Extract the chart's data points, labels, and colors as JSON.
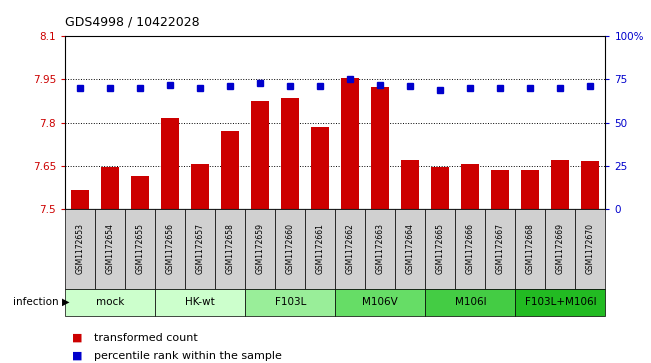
{
  "title": "GDS4998 / 10422028",
  "samples": [
    "GSM1172653",
    "GSM1172654",
    "GSM1172655",
    "GSM1172656",
    "GSM1172657",
    "GSM1172658",
    "GSM1172659",
    "GSM1172660",
    "GSM1172661",
    "GSM1172662",
    "GSM1172663",
    "GSM1172664",
    "GSM1172665",
    "GSM1172666",
    "GSM1172667",
    "GSM1172668",
    "GSM1172669",
    "GSM1172670"
  ],
  "bar_values": [
    7.565,
    7.645,
    7.615,
    7.815,
    7.655,
    7.77,
    7.875,
    7.885,
    7.785,
    7.955,
    7.925,
    7.67,
    7.645,
    7.655,
    7.635,
    7.635,
    7.67,
    7.665
  ],
  "percentile_values": [
    70,
    70,
    70,
    72,
    70,
    71,
    73,
    71,
    71,
    75,
    72,
    71,
    69,
    70,
    70,
    70,
    70,
    71
  ],
  "ylim_left": [
    7.5,
    8.1
  ],
  "ylim_right": [
    0,
    100
  ],
  "yticks_left": [
    7.5,
    7.65,
    7.8,
    7.95,
    8.1
  ],
  "ytick_labels_left": [
    "7.5",
    "7.65",
    "7.8",
    "7.95",
    "8.1"
  ],
  "ytick_labels_right": [
    "0",
    "25",
    "50",
    "75",
    "100%"
  ],
  "bar_color": "#cc0000",
  "dot_color": "#0000cc",
  "gridline_values": [
    7.65,
    7.8,
    7.95
  ],
  "groups": [
    {
      "label": "mock",
      "start": 0,
      "end": 2,
      "color": "#ccffcc"
    },
    {
      "label": "HK-wt",
      "start": 3,
      "end": 5,
      "color": "#ccffcc"
    },
    {
      "label": "F103L",
      "start": 6,
      "end": 8,
      "color": "#99ee99"
    },
    {
      "label": "M106V",
      "start": 9,
      "end": 11,
      "color": "#66dd66"
    },
    {
      "label": "M106I",
      "start": 12,
      "end": 14,
      "color": "#44cc44"
    },
    {
      "label": "F103L+M106I",
      "start": 15,
      "end": 17,
      "color": "#22bb22"
    }
  ],
  "sample_cell_color": "#d0d0d0",
  "infection_label": "infection",
  "legend_bar_label": "transformed count",
  "legend_dot_label": "percentile rank within the sample"
}
